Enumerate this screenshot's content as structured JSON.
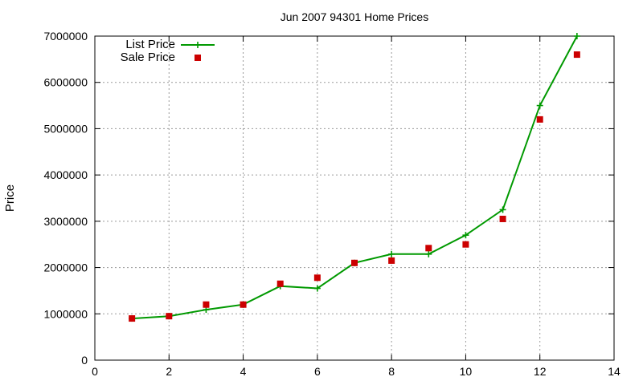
{
  "chart_data": {
    "type": "line",
    "title": "Jun 2007 94301 Home Prices",
    "xlabel": "",
    "ylabel": "Price",
    "xlim": [
      0,
      14
    ],
    "ylim": [
      0,
      7000000
    ],
    "xticks": [
      0,
      2,
      4,
      6,
      8,
      10,
      12,
      14
    ],
    "yticks": [
      0,
      1000000,
      2000000,
      3000000,
      4000000,
      5000000,
      6000000,
      7000000
    ],
    "grid": true,
    "legend_position": "top-left",
    "series": [
      {
        "name": "List Price",
        "style": "line-with-plus-markers",
        "color": "#009900",
        "x": [
          1,
          2,
          3,
          4,
          5,
          6,
          7,
          8,
          9,
          10,
          11,
          12,
          13
        ],
        "y": [
          900000,
          950000,
          1090000,
          1200000,
          1600000,
          1550000,
          2100000,
          2290000,
          2290000,
          2700000,
          3250000,
          5500000,
          7000000
        ]
      },
      {
        "name": "Sale Price",
        "style": "square-markers",
        "color": "#cc0000",
        "x": [
          1,
          2,
          3,
          4,
          5,
          6,
          7,
          8,
          9,
          10,
          11,
          12,
          13
        ],
        "y": [
          900000,
          950000,
          1200000,
          1200000,
          1650000,
          1780000,
          2100000,
          2150000,
          2420000,
          2500000,
          3050000,
          5200000,
          6600000
        ]
      }
    ]
  }
}
